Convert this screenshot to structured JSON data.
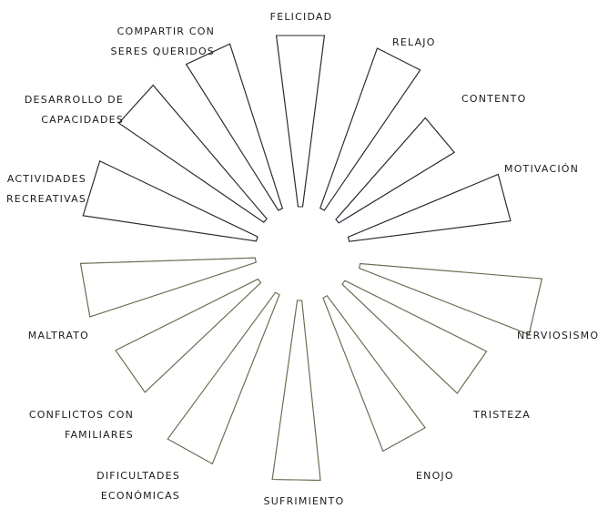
{
  "chart_data": {
    "type": "radial-bar",
    "levels": 5,
    "series": [
      {
        "label": "FELICIDAD",
        "level": 4,
        "color": "#ecc11a",
        "side": "top"
      },
      {
        "label": "RELAJO",
        "level": 4,
        "color": "#d4391a",
        "side": "top"
      },
      {
        "label": "CONTENTO",
        "level": 2,
        "color": "#d9448a",
        "side": "top"
      },
      {
        "label": "MOTIVACIÓN",
        "level": 3,
        "color": "#ec7b66",
        "side": "top"
      },
      {
        "label": "NERVIOSISMO",
        "level": 5,
        "color": "#706766",
        "side": "bottom"
      },
      {
        "label": "TRISTEZA",
        "level": 4,
        "color": "#775a4c",
        "side": "bottom"
      },
      {
        "label": "ENOJO",
        "level": 2,
        "color": "#7a6a4d",
        "side": "bottom"
      },
      {
        "label": "SUFRIMIENTO",
        "level": 2,
        "color": "#79c3c4",
        "side": "bottom"
      },
      {
        "label": "DIFICULTADES ECONÓMICAS",
        "level": 5,
        "color": "#6fab8c",
        "side": "bottom"
      },
      {
        "label": "CONFLICTOS CON FAMILIARES",
        "level": 3,
        "color": "#4f6077",
        "side": "bottom"
      },
      {
        "label": "MALTRATO",
        "level": 2,
        "color": "#2e4158",
        "side": "bottom"
      },
      {
        "label": "ACTIVIDADES RECREATIVAS",
        "level": 3,
        "color": "#1c3dc6",
        "side": "top"
      },
      {
        "label": "DESARROLLO DE CAPACIDADES",
        "level": 4,
        "color": "#54d0dc",
        "side": "top"
      },
      {
        "label": "COMPARTIR CON SERES QUERIDOS",
        "level": 3,
        "color": "#87cbd7",
        "side": "top"
      }
    ]
  },
  "colors": {
    "top_outline": "#2a2a34",
    "bottom_outline": "#6f6a52"
  }
}
